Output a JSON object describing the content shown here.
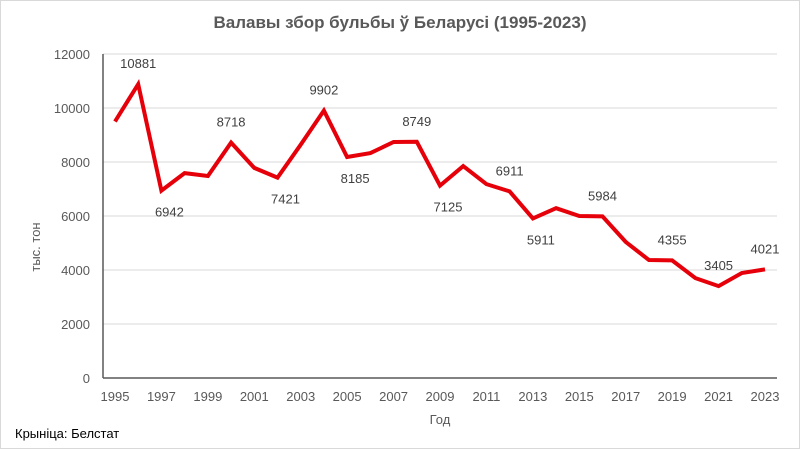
{
  "chart_data": {
    "type": "line",
    "title": "Валавы збор бульбы ў Беларусі (1995-2023)",
    "xlabel": "Год",
    "ylabel": "тыс. тон",
    "ylim": [
      0,
      12000
    ],
    "yticks": [
      0,
      2000,
      4000,
      6000,
      8000,
      10000,
      12000
    ],
    "xticks": [
      1995,
      1997,
      1999,
      2001,
      2003,
      2005,
      2007,
      2009,
      2011,
      2013,
      2015,
      2017,
      2019,
      2021,
      2023
    ],
    "grid": "horizontal",
    "legend": "none",
    "series": [
      {
        "name": "Валавы збор бульбы",
        "color": "#e6000a",
        "x": [
          1995,
          1996,
          1997,
          1998,
          1999,
          2000,
          2001,
          2002,
          2003,
          2004,
          2005,
          2006,
          2007,
          2008,
          2009,
          2010,
          2011,
          2012,
          2013,
          2014,
          2015,
          2016,
          2017,
          2018,
          2019,
          2020,
          2021,
          2022,
          2023
        ],
        "values": [
          9500,
          10881,
          6942,
          7590,
          7480,
          8718,
          7780,
          7421,
          8640,
          9902,
          8185,
          8330,
          8740,
          8749,
          7125,
          7850,
          7180,
          6911,
          5911,
          6290,
          6000,
          5984,
          5040,
          4370,
          4355,
          3700,
          3405,
          3890,
          4021
        ]
      }
    ],
    "data_labels": [
      {
        "x": 1996,
        "value": "10881",
        "pos": "above"
      },
      {
        "x": 1997,
        "value": "6942",
        "pos": "below"
      },
      {
        "x": 2000,
        "value": "8718",
        "pos": "above"
      },
      {
        "x": 2002,
        "value": "7421",
        "pos": "below"
      },
      {
        "x": 2004,
        "value": "9902",
        "pos": "above"
      },
      {
        "x": 2005,
        "value": "8185",
        "pos": "below"
      },
      {
        "x": 2008,
        "value": "8749",
        "pos": "above"
      },
      {
        "x": 2009,
        "value": "7125",
        "pos": "below"
      },
      {
        "x": 2012,
        "value": "6911",
        "pos": "above"
      },
      {
        "x": 2013,
        "value": "5911",
        "pos": "below"
      },
      {
        "x": 2016,
        "value": "5984",
        "pos": "above"
      },
      {
        "x": 2019,
        "value": "4355",
        "pos": "above"
      },
      {
        "x": 2021,
        "value": "3405",
        "pos": "above"
      },
      {
        "x": 2023,
        "value": "4021",
        "pos": "above"
      }
    ]
  },
  "source": "Крыніца: Белстат"
}
